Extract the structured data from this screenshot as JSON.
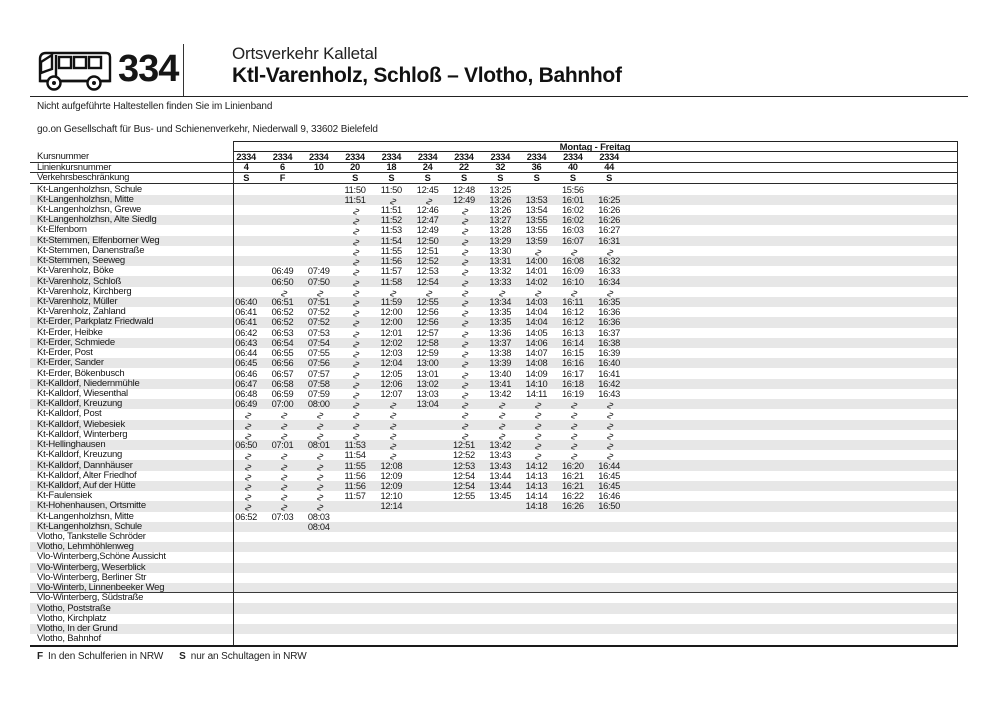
{
  "page": {
    "route_number": "334",
    "operator_line": "Ortsverkehr Kalletal",
    "route_title": "Ktl-Varenholz, Schloß – Vlotho, Bahnhof",
    "note": "Nicht aufgeführte Haltestellen finden Sie im Linienband",
    "company": "go.on Gesellschaft für Bus- und Schienenverkehr, Niederwall 9, 33602 Bielefeld"
  },
  "icons": {
    "bus": "bus-pictogram"
  },
  "table": {
    "period_label": "Montag - Freitag",
    "labels": {
      "course": "Kursnummer",
      "line_course": "Linienkursnummer",
      "restriction": "Verkehrsbeschränkung"
    },
    "course_numbers": [
      "2334",
      "2334",
      "2334",
      "2334",
      "2334",
      "2334",
      "2334",
      "2334",
      "2334",
      "2334",
      "2334"
    ],
    "line_course_numbers": [
      "4",
      "6",
      "10",
      "20",
      "18",
      "24",
      "22",
      "32",
      "36",
      "40",
      "44"
    ],
    "restrictions": [
      "S",
      "F",
      "",
      "S",
      "S",
      "S",
      "S",
      "S",
      "S",
      "S",
      "S"
    ],
    "wavy_symbol": "∿",
    "stops": [
      {
        "name": "Kt-Langenholzhsn, Schule",
        "times": [
          "",
          "",
          "",
          "11:50",
          "11:50",
          "12:45",
          "12:48",
          "13:25",
          "",
          "15:56",
          ""
        ]
      },
      {
        "name": "Kt-Langenholzhsn, Mitte",
        "times": [
          "",
          "",
          "",
          "11:51",
          "~",
          "~",
          "12:49",
          "13:26",
          "13:53",
          "16:01",
          "16:25"
        ]
      },
      {
        "name": "Kt-Langenholzhsn, Grewe",
        "times": [
          "",
          "",
          "",
          "~",
          "11:51",
          "12:46",
          "~",
          "13:26",
          "13:54",
          "16:02",
          "16:26"
        ]
      },
      {
        "name": "Kt-Langenholzhsn, Alte Siedlg",
        "times": [
          "",
          "",
          "",
          "~",
          "11:52",
          "12:47",
          "~",
          "13:27",
          "13:55",
          "16:02",
          "16:26"
        ]
      },
      {
        "name": "Kt-Elfenborn",
        "times": [
          "",
          "",
          "",
          "~",
          "11:53",
          "12:49",
          "~",
          "13:28",
          "13:55",
          "16:03",
          "16:27"
        ]
      },
      {
        "name": "Kt-Stemmen, Elfenborner Weg",
        "times": [
          "",
          "",
          "",
          "~",
          "11:54",
          "12:50",
          "~",
          "13:29",
          "13:59",
          "16:07",
          "16:31"
        ]
      },
      {
        "name": "Kt-Stemmen, Danenstraße",
        "times": [
          "",
          "",
          "",
          "~",
          "11:55",
          "12:51",
          "~",
          "13:30",
          "~",
          "~",
          "~"
        ]
      },
      {
        "name": "Kt-Stemmen, Seeweg",
        "times": [
          "",
          "",
          "",
          "~",
          "11:56",
          "12:52",
          "~",
          "13:31",
          "14:00",
          "16:08",
          "16:32"
        ]
      },
      {
        "name": "Kt-Varenholz, Böke",
        "times": [
          "",
          "06:49",
          "07:49",
          "~",
          "11:57",
          "12:53",
          "~",
          "13:32",
          "14:01",
          "16:09",
          "16:33"
        ]
      },
      {
        "name": "Kt-Varenholz, Schloß",
        "times": [
          "",
          "06:50",
          "07:50",
          "~",
          "11:58",
          "12:54",
          "~",
          "13:33",
          "14:02",
          "16:10",
          "16:34"
        ]
      },
      {
        "name": "Kt-Varenholz, Kirchberg",
        "times": [
          "",
          "~",
          "~",
          "~",
          "~",
          "~",
          "~",
          "~",
          "~",
          "~",
          "~"
        ]
      },
      {
        "name": "Kt-Varenholz, Müller",
        "times": [
          "06:40",
          "06:51",
          "07:51",
          "~",
          "11:59",
          "12:55",
          "~",
          "13:34",
          "14:03",
          "16:11",
          "16:35"
        ]
      },
      {
        "name": "Kt-Varenholz, Zahland",
        "times": [
          "06:41",
          "06:52",
          "07:52",
          "~",
          "12:00",
          "12:56",
          "~",
          "13:35",
          "14:04",
          "16:12",
          "16:36"
        ]
      },
      {
        "name": "Kt-Erder, Parkplatz Friedwald",
        "times": [
          "06:41",
          "06:52",
          "07:52",
          "~",
          "12:00",
          "12:56",
          "~",
          "13:35",
          "14:04",
          "16:12",
          "16:36"
        ]
      },
      {
        "name": "Kt-Erder, Heibke",
        "times": [
          "06:42",
          "06:53",
          "07:53",
          "~",
          "12:01",
          "12:57",
          "~",
          "13:36",
          "14:05",
          "16:13",
          "16:37"
        ]
      },
      {
        "name": "Kt-Erder, Schmiede",
        "times": [
          "06:43",
          "06:54",
          "07:54",
          "~",
          "12:02",
          "12:58",
          "~",
          "13:37",
          "14:06",
          "16:14",
          "16:38"
        ]
      },
      {
        "name": "Kt-Erder, Post",
        "times": [
          "06:44",
          "06:55",
          "07:55",
          "~",
          "12:03",
          "12:59",
          "~",
          "13:38",
          "14:07",
          "16:15",
          "16:39"
        ]
      },
      {
        "name": "Kt-Erder, Sander",
        "times": [
          "06:45",
          "06:56",
          "07:56",
          "~",
          "12:04",
          "13:00",
          "~",
          "13:39",
          "14:08",
          "16:16",
          "16:40"
        ]
      },
      {
        "name": "Kt-Erder, Bökenbusch",
        "times": [
          "06:46",
          "06:57",
          "07:57",
          "~",
          "12:05",
          "13:01",
          "~",
          "13:40",
          "14:09",
          "16:17",
          "16:41"
        ]
      },
      {
        "name": "Kt-Kalldorf, Niedernmühle",
        "times": [
          "06:47",
          "06:58",
          "07:58",
          "~",
          "12:06",
          "13:02",
          "~",
          "13:41",
          "14:10",
          "16:18",
          "16:42"
        ]
      },
      {
        "name": "Kt-Kalldorf, Wiesenthal",
        "times": [
          "06:48",
          "06:59",
          "07:59",
          "~",
          "12:07",
          "13:03",
          "~",
          "13:42",
          "14:11",
          "16:19",
          "16:43"
        ]
      },
      {
        "name": "Kt-Kalldorf, Kreuzung",
        "times": [
          "06:49",
          "07:00",
          "08:00",
          "~",
          "~",
          "13:04",
          "~",
          "~",
          "~",
          "~",
          "~"
        ]
      },
      {
        "name": "Kt-Kalldorf, Post",
        "times": [
          "~",
          "~",
          "~",
          "~",
          "~",
          "",
          "~",
          "~",
          "~",
          "~",
          "~"
        ]
      },
      {
        "name": "Kt-Kalldorf, Wiebesiek",
        "times": [
          "~",
          "~",
          "~",
          "~",
          "~",
          "",
          "~",
          "~",
          "~",
          "~",
          "~"
        ]
      },
      {
        "name": "Kt-Kalldorf, Winterberg",
        "times": [
          "~",
          "~",
          "~",
          "~",
          "~",
          "",
          "~",
          "~",
          "~",
          "~",
          "~"
        ]
      },
      {
        "name": "Kt-Hellinghausen",
        "times": [
          "06:50",
          "07:01",
          "08:01",
          "11:53",
          "~",
          "",
          "12:51",
          "13:42",
          "~",
          "~",
          "~"
        ]
      },
      {
        "name": "Kt-Kalldorf, Kreuzung",
        "times": [
          "~",
          "~",
          "~",
          "11:54",
          "~",
          "",
          "12:52",
          "13:43",
          "~",
          "~",
          "~"
        ]
      },
      {
        "name": "Kt-Kalldorf, Dannhäuser",
        "times": [
          "~",
          "~",
          "~",
          "11:55",
          "12:08",
          "",
          "12:53",
          "13:43",
          "14:12",
          "16:20",
          "16:44"
        ]
      },
      {
        "name": "Kt-Kalldorf, Alter Friedhof",
        "times": [
          "~",
          "~",
          "~",
          "11:56",
          "12:09",
          "",
          "12:54",
          "13:44",
          "14:13",
          "16:21",
          "16:45"
        ]
      },
      {
        "name": "Kt-Kalldorf, Auf der Hütte",
        "times": [
          "~",
          "~",
          "~",
          "11:56",
          "12:09",
          "",
          "12:54",
          "13:44",
          "14:13",
          "16:21",
          "16:45"
        ]
      },
      {
        "name": "Kt-Faulensiek",
        "times": [
          "~",
          "~",
          "~",
          "11:57",
          "12:10",
          "",
          "12:55",
          "13:45",
          "14:14",
          "16:22",
          "16:46"
        ]
      },
      {
        "name": "Kt-Hohenhausen, Ortsmitte",
        "times": [
          "~",
          "~",
          "~",
          "",
          "12:14",
          "",
          "",
          "",
          "14:18",
          "16:26",
          "16:50"
        ]
      },
      {
        "name": "Kt-Langenholzhsn, Mitte",
        "times": [
          "06:52",
          "07:03",
          "08:03",
          "",
          "",
          "",
          "",
          "",
          "",
          "",
          ""
        ]
      },
      {
        "name": "Kt-Langenholzhsn, Schule",
        "times": [
          "",
          "",
          "08:04",
          "",
          "",
          "",
          "",
          "",
          "",
          "",
          ""
        ]
      },
      {
        "name": "Vlotho, Tankstelle Schröder",
        "times": [
          "",
          "",
          "",
          "",
          "",
          "",
          "",
          "",
          "",
          "",
          ""
        ]
      },
      {
        "name": "Vlotho, Lehmhöhlenweg",
        "times": [
          "",
          "",
          "",
          "",
          "",
          "",
          "",
          "",
          "",
          "",
          ""
        ]
      },
      {
        "name": "Vlo-Winterberg,Schöne Aussicht",
        "times": [
          "",
          "",
          "",
          "",
          "",
          "",
          "",
          "",
          "",
          "",
          ""
        ]
      },
      {
        "name": "Vlo-Winterberg, Weserblick",
        "times": [
          "",
          "",
          "",
          "",
          "",
          "",
          "",
          "",
          "",
          "",
          ""
        ]
      },
      {
        "name": "Vlo-Winterberg, Berliner Str",
        "times": [
          "",
          "",
          "",
          "",
          "",
          "",
          "",
          "",
          "",
          "",
          ""
        ]
      },
      {
        "name": "Vlo-Winterb, Linnenbeeker Weg",
        "rule_after": true,
        "times": [
          "",
          "",
          "",
          "",
          "",
          "",
          "",
          "",
          "",
          "",
          ""
        ]
      },
      {
        "name": "Vlo-Winterberg, Südstraße",
        "times": [
          "",
          "",
          "",
          "",
          "",
          "",
          "",
          "",
          "",
          "",
          ""
        ]
      },
      {
        "name": "Vlotho, Poststraße",
        "times": [
          "",
          "",
          "",
          "",
          "",
          "",
          "",
          "",
          "",
          "",
          ""
        ]
      },
      {
        "name": "Vlotho, Kirchplatz",
        "times": [
          "",
          "",
          "",
          "",
          "",
          "",
          "",
          "",
          "",
          "",
          ""
        ]
      },
      {
        "name": "Vlotho, In der Grund",
        "times": [
          "",
          "",
          "",
          "",
          "",
          "",
          "",
          "",
          "",
          "",
          ""
        ]
      },
      {
        "name": "Vlotho, Bahnhof",
        "times": [
          "",
          "",
          "",
          "",
          "",
          "",
          "",
          "",
          "",
          "",
          ""
        ]
      }
    ]
  },
  "legend": {
    "f_key": "F",
    "f_text": "In den Schulferien in NRW",
    "s_key": "S",
    "s_text": "nur an Schultagen in NRW"
  }
}
